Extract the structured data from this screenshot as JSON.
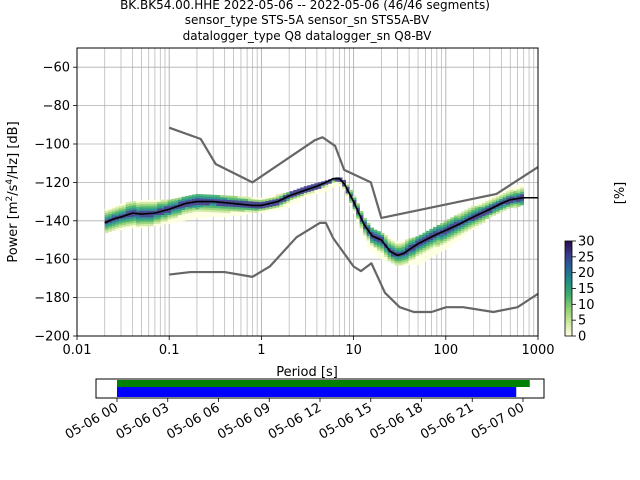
{
  "chart_data": {
    "type": "heatmap",
    "title_lines": [
      "BK.BK54.00.HHE   2022-05-06 -- 2022-05-06  (46/46 segments)",
      "sensor_type STS-5A sensor_sn STS5A-BV",
      "datalogger_type Q8 datalogger_sn Q8-BV"
    ],
    "xlabel": "Period [s]",
    "ylabel_prefix": "Power [m",
    "ylabel_exp1": "2",
    "ylabel_mid": "/s",
    "ylabel_exp2": "4",
    "ylabel_suffix": "/Hz] [dB]",
    "x_scale": "log",
    "xlim": [
      0.01,
      1000
    ],
    "ylim": [
      -200,
      -50
    ],
    "grid": true,
    "x_ticks": [
      {
        "value": 0.01,
        "label": "0.01"
      },
      {
        "value": 0.1,
        "label": "0.1"
      },
      {
        "value": 1,
        "label": "1"
      },
      {
        "value": 10,
        "label": "10"
      },
      {
        "value": 100,
        "label": "100"
      },
      {
        "value": 1000,
        "label": "1000"
      }
    ],
    "y_ticks": [
      {
        "value": -200,
        "label": "−200"
      },
      {
        "value": -180,
        "label": "−180"
      },
      {
        "value": -160,
        "label": "−160"
      },
      {
        "value": -140,
        "label": "−140"
      },
      {
        "value": -120,
        "label": "−120"
      },
      {
        "value": -100,
        "label": "−100"
      },
      {
        "value": -80,
        "label": "−80"
      },
      {
        "value": -60,
        "label": "−60"
      }
    ],
    "noise_model_high": {
      "color": "#666666",
      "period": [
        0.1,
        0.22,
        0.32,
        0.8,
        3.8,
        4.6,
        6.3,
        7.9,
        15.4,
        20,
        354.8,
        1000
      ],
      "db": [
        -91.5,
        -97.4,
        -110.5,
        -120,
        -98,
        -96.5,
        -101,
        -113.5,
        -120,
        -138.5,
        -126,
        -112
      ]
    },
    "noise_model_low": {
      "color": "#666666",
      "period": [
        0.1,
        0.17,
        0.4,
        0.8,
        1.24,
        2.4,
        4.3,
        5,
        6,
        10,
        12,
        15.6,
        21.9,
        31.6,
        45,
        70,
        101,
        154,
        328,
        600,
        1000
      ],
      "db": [
        -168,
        -166.7,
        -166.7,
        -169.2,
        -163.7,
        -148.6,
        -141.1,
        -141.1,
        -149,
        -163.8,
        -166.2,
        -162.1,
        -177.5,
        -185,
        -187.5,
        -187.5,
        -185,
        -185,
        -187.5,
        -185,
        -178
      ]
    },
    "mode_line": {
      "color": "#000000",
      "period": [
        0.02,
        0.025,
        0.03,
        0.04,
        0.05,
        0.07,
        0.1,
        0.15,
        0.2,
        0.3,
        0.5,
        0.8,
        1,
        1.5,
        2,
        3,
        4,
        5,
        6,
        7,
        8,
        10,
        13,
        16,
        20,
        25,
        30,
        35,
        40,
        50,
        60,
        80,
        100,
        150,
        200,
        300,
        400,
        500,
        700,
        1000
      ],
      "db": [
        -141,
        -139,
        -138,
        -136,
        -136.5,
        -136,
        -134,
        -131,
        -130,
        -130,
        -131,
        -132,
        -132,
        -130,
        -127,
        -124,
        -122,
        -120,
        -118,
        -118,
        -121,
        -130,
        -142,
        -148,
        -150,
        -156,
        -158,
        -157,
        -155,
        -152,
        -150,
        -147,
        -145,
        -141,
        -138,
        -134,
        -131,
        -129,
        -128,
        -128
      ]
    },
    "pdf_band": {
      "period": [
        0.02,
        0.03,
        0.05,
        0.1,
        0.2,
        0.5,
        1,
        2,
        3,
        5,
        7,
        8,
        10,
        13,
        16,
        20,
        30,
        50,
        100,
        200,
        300,
        500,
        700
      ],
      "upper_db": [
        -134,
        -131,
        -129,
        -129,
        -126,
        -127,
        -128,
        -125,
        -122,
        -119,
        -117,
        -119,
        -126,
        -138,
        -144,
        -146,
        -151,
        -148,
        -140,
        -132,
        -128,
        -123,
        -120
      ],
      "lower_db": [
        -146,
        -144,
        -143,
        -141,
        -138,
        -137,
        -135,
        -132,
        -127,
        -124,
        -121,
        -124,
        -135,
        -149,
        -156,
        -159,
        -163,
        -162,
        -154,
        -144,
        -138,
        -133,
        -131
      ]
    },
    "colorbar": {
      "label": "[%]",
      "range": [
        0,
        30
      ],
      "ticks": [
        "0",
        "5",
        "10",
        "15",
        "20",
        "25",
        "30"
      ],
      "colors": [
        "#ffffe0",
        "#cce8a0",
        "#8fcf70",
        "#3fae6a",
        "#1f8f86",
        "#27659a",
        "#3a3a8a",
        "#2a0a4a"
      ]
    },
    "coverage": {
      "tick_labels": [
        "05-06 00",
        "05-06 03",
        "05-06 06",
        "05-06 09",
        "05-06 12",
        "05-06 15",
        "05-06 18",
        "05-06 21",
        "05-07 00"
      ],
      "bars": [
        {
          "color": "#008000",
          "start_hour": 0,
          "end_hour": 24.4
        },
        {
          "color": "#0000ff",
          "start_hour": 0,
          "end_hour": 23.6
        }
      ]
    }
  }
}
